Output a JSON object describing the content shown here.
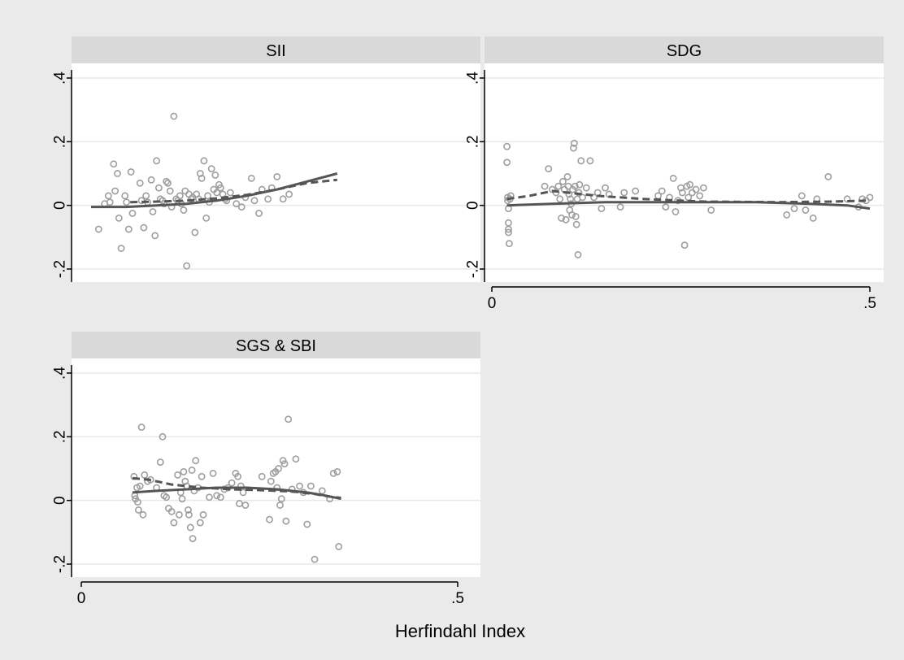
{
  "chart_data": {
    "type": "scatter",
    "layout": "small-multiples-2x2",
    "xlabel": "Herfindahl Index",
    "ylabel": "",
    "xlim": [
      0,
      0.5
    ],
    "ylim": [
      -0.2,
      0.4
    ],
    "x_ticks": [
      {
        "value": 0,
        "label": "0"
      },
      {
        "value": 0.5,
        "label": ".5"
      }
    ],
    "y_ticks": [
      {
        "value": -0.2,
        "label": "-.2"
      },
      {
        "value": 0,
        "label": "0"
      },
      {
        "value": 0.2,
        "label": ".2"
      },
      {
        "value": 0.4,
        "label": ".4"
      }
    ],
    "grid": "horizontal",
    "legend": "none",
    "colors": {
      "background": "#eaeaea",
      "plot_bg": "#ffffff",
      "header_bg": "#d9d9d9",
      "grid": "#e8e8e8",
      "axis": "#000000",
      "points": "#9e9e9e",
      "solid_line": "#555555",
      "dashed_line": "#555555"
    },
    "panels": [
      {
        "title": "SII",
        "points": [
          [
            0.075,
            -0.075
          ],
          [
            0.083,
            0.005
          ],
          [
            0.088,
            0.03
          ],
          [
            0.09,
            0.01
          ],
          [
            0.095,
            0.13
          ],
          [
            0.097,
            0.045
          ],
          [
            0.1,
            0.1
          ],
          [
            0.102,
            -0.04
          ],
          [
            0.105,
            -0.135
          ],
          [
            0.11,
            0.03
          ],
          [
            0.112,
            0.01
          ],
          [
            0.115,
            -0.075
          ],
          [
            0.118,
            0.105
          ],
          [
            0.12,
            -0.025
          ],
          [
            0.13,
            0.07
          ],
          [
            0.132,
            0.015
          ],
          [
            0.135,
            -0.07
          ],
          [
            0.138,
            0.03
          ],
          [
            0.14,
            0.01
          ],
          [
            0.145,
            0.08
          ],
          [
            0.147,
            -0.02
          ],
          [
            0.15,
            -0.095
          ],
          [
            0.152,
            0.14
          ],
          [
            0.155,
            0.055
          ],
          [
            0.157,
            0.02
          ],
          [
            0.16,
            0.015
          ],
          [
            0.162,
            0.005
          ],
          [
            0.165,
            0.075
          ],
          [
            0.167,
            0.07
          ],
          [
            0.17,
            0.045
          ],
          [
            0.172,
            -0.005
          ],
          [
            0.175,
            0.28
          ],
          [
            0.178,
            0.02
          ],
          [
            0.18,
            0.015
          ],
          [
            0.183,
            0.03
          ],
          [
            0.185,
            0.005
          ],
          [
            0.188,
            -0.015
          ],
          [
            0.19,
            0.045
          ],
          [
            0.192,
            -0.19
          ],
          [
            0.195,
            0.035
          ],
          [
            0.198,
            0.02
          ],
          [
            0.2,
            0.025
          ],
          [
            0.203,
            -0.085
          ],
          [
            0.205,
            0.035
          ],
          [
            0.208,
            0.02
          ],
          [
            0.21,
            0.1
          ],
          [
            0.212,
            0.085
          ],
          [
            0.215,
            0.14
          ],
          [
            0.218,
            -0.04
          ],
          [
            0.22,
            0.03
          ],
          [
            0.222,
            0.01
          ],
          [
            0.225,
            0.115
          ],
          [
            0.228,
            0.05
          ],
          [
            0.23,
            0.095
          ],
          [
            0.232,
            0.04
          ],
          [
            0.235,
            0.065
          ],
          [
            0.237,
            0.055
          ],
          [
            0.24,
            0.035
          ],
          [
            0.243,
            0.02
          ],
          [
            0.245,
            0.015
          ],
          [
            0.25,
            0.04
          ],
          [
            0.258,
            0.005
          ],
          [
            0.265,
            -0.005
          ],
          [
            0.27,
            0.025
          ],
          [
            0.278,
            0.085
          ],
          [
            0.282,
            0.015
          ],
          [
            0.288,
            -0.025
          ],
          [
            0.292,
            0.05
          ],
          [
            0.3,
            0.02
          ],
          [
            0.305,
            0.055
          ],
          [
            0.312,
            0.09
          ],
          [
            0.32,
            0.02
          ],
          [
            0.328,
            0.035
          ]
        ],
        "points_dx": -0.052,
        "solid_curve": [
          [
            0.013,
            -0.005
          ],
          [
            0.06,
            -0.005
          ],
          [
            0.1,
            0.0
          ],
          [
            0.14,
            0.005
          ],
          [
            0.18,
            0.015
          ],
          [
            0.22,
            0.03
          ],
          [
            0.26,
            0.05
          ],
          [
            0.3,
            0.075
          ],
          [
            0.34,
            0.1
          ]
        ],
        "solid_dx": 0.0,
        "dashed_curve": [
          [
            0.065,
            0.01
          ],
          [
            0.1,
            0.012
          ],
          [
            0.14,
            0.015
          ],
          [
            0.18,
            0.022
          ],
          [
            0.22,
            0.033
          ],
          [
            0.26,
            0.05
          ],
          [
            0.3,
            0.07
          ],
          [
            0.34,
            0.08
          ]
        ],
        "dashed_dx": -0.0
      },
      {
        "title": "SDG",
        "points": [
          [
            0.02,
            0.185
          ],
          [
            0.02,
            0.135
          ],
          [
            0.021,
            0.025
          ],
          [
            0.021,
            0.015
          ],
          [
            0.022,
            -0.01
          ],
          [
            0.022,
            -0.055
          ],
          [
            0.022,
            -0.075
          ],
          [
            0.022,
            -0.085
          ],
          [
            0.023,
            -0.12
          ],
          [
            0.024,
            0.02
          ],
          [
            0.025,
            0.03
          ],
          [
            0.07,
            0.06
          ],
          [
            0.075,
            0.115
          ],
          [
            0.08,
            0.05
          ],
          [
            0.085,
            0.04
          ],
          [
            0.088,
            0.06
          ],
          [
            0.09,
            0.02
          ],
          [
            0.092,
            -0.04
          ],
          [
            0.094,
            0.075
          ],
          [
            0.096,
            0.05
          ],
          [
            0.098,
            -0.045
          ],
          [
            0.1,
            0.09
          ],
          [
            0.101,
            0.06
          ],
          [
            0.102,
            0.035
          ],
          [
            0.103,
            -0.015
          ],
          [
            0.104,
            0.02
          ],
          [
            0.105,
            0.005
          ],
          [
            0.106,
            -0.03
          ],
          [
            0.107,
            0.05
          ],
          [
            0.108,
            0.18
          ],
          [
            0.109,
            0.195
          ],
          [
            0.11,
            0.06
          ],
          [
            0.111,
            -0.035
          ],
          [
            0.112,
            -0.06
          ],
          [
            0.113,
            0.02
          ],
          [
            0.114,
            -0.155
          ],
          [
            0.115,
            0.04
          ],
          [
            0.116,
            0.065
          ],
          [
            0.118,
            0.14
          ],
          [
            0.12,
            0.025
          ],
          [
            0.125,
            0.055
          ],
          [
            0.13,
            0.14
          ],
          [
            0.135,
            0.025
          ],
          [
            0.14,
            0.04
          ],
          [
            0.145,
            -0.01
          ],
          [
            0.15,
            0.055
          ],
          [
            0.155,
            0.035
          ],
          [
            0.17,
            -0.005
          ],
          [
            0.175,
            0.04
          ],
          [
            0.19,
            0.045
          ],
          [
            0.22,
            0.03
          ],
          [
            0.225,
            0.045
          ],
          [
            0.23,
            -0.005
          ],
          [
            0.235,
            0.025
          ],
          [
            0.24,
            0.085
          ],
          [
            0.243,
            -0.02
          ],
          [
            0.246,
            0.015
          ],
          [
            0.25,
            0.055
          ],
          [
            0.252,
            0.04
          ],
          [
            0.255,
            -0.125
          ],
          [
            0.258,
            0.06
          ],
          [
            0.26,
            0.025
          ],
          [
            0.262,
            0.065
          ],
          [
            0.265,
            0.04
          ],
          [
            0.27,
            0.05
          ],
          [
            0.275,
            0.03
          ],
          [
            0.28,
            0.055
          ],
          [
            0.29,
            -0.015
          ],
          [
            0.39,
            -0.03
          ],
          [
            0.4,
            -0.01
          ],
          [
            0.41,
            0.03
          ],
          [
            0.415,
            -0.015
          ],
          [
            0.425,
            -0.04
          ],
          [
            0.43,
            0.02
          ],
          [
            0.445,
            0.09
          ],
          [
            0.47,
            0.02
          ],
          [
            0.485,
            -0.005
          ],
          [
            0.49,
            0.02
          ],
          [
            0.495,
            0.015
          ],
          [
            0.5,
            0.025
          ]
        ],
        "points_dx": 0.0,
        "solid_curve": [
          [
            0.02,
            0.0
          ],
          [
            0.08,
            0.005
          ],
          [
            0.15,
            0.01
          ],
          [
            0.25,
            0.01
          ],
          [
            0.35,
            0.01
          ],
          [
            0.42,
            0.005
          ],
          [
            0.47,
            0.0
          ],
          [
            0.5,
            -0.01
          ]
        ],
        "solid_dx": 0.0,
        "dashed_curve": [
          [
            0.02,
            0.02
          ],
          [
            0.05,
            0.03
          ],
          [
            0.08,
            0.045
          ],
          [
            0.1,
            0.04
          ],
          [
            0.14,
            0.03
          ],
          [
            0.2,
            0.02
          ],
          [
            0.28,
            0.012
          ],
          [
            0.38,
            0.01
          ],
          [
            0.45,
            0.012
          ],
          [
            0.5,
            0.015
          ]
        ],
        "dashed_dx": 0.0
      },
      {
        "title": "SGS & SBI",
        "points": [
          [
            0.07,
            0.075
          ],
          [
            0.071,
            0.015
          ],
          [
            0.072,
            0.005
          ],
          [
            0.074,
            0.04
          ],
          [
            0.075,
            -0.005
          ],
          [
            0.076,
            -0.03
          ],
          [
            0.078,
            0.045
          ],
          [
            0.08,
            0.23
          ],
          [
            0.082,
            -0.045
          ],
          [
            0.084,
            0.08
          ],
          [
            0.088,
            0.06
          ],
          [
            0.092,
            0.065
          ],
          [
            0.1,
            0.04
          ],
          [
            0.105,
            0.12
          ],
          [
            0.108,
            0.2
          ],
          [
            0.11,
            0.015
          ],
          [
            0.113,
            0.01
          ],
          [
            0.116,
            -0.025
          ],
          [
            0.12,
            -0.035
          ],
          [
            0.123,
            -0.07
          ],
          [
            0.128,
            0.08
          ],
          [
            0.13,
            -0.045
          ],
          [
            0.132,
            0.025
          ],
          [
            0.134,
            0.005
          ],
          [
            0.136,
            0.09
          ],
          [
            0.138,
            0.06
          ],
          [
            0.14,
            0.045
          ],
          [
            0.142,
            -0.03
          ],
          [
            0.143,
            -0.045
          ],
          [
            0.145,
            -0.085
          ],
          [
            0.147,
            0.095
          ],
          [
            0.148,
            -0.12
          ],
          [
            0.15,
            0.03
          ],
          [
            0.152,
            0.125
          ],
          [
            0.155,
            0.04
          ],
          [
            0.158,
            -0.07
          ],
          [
            0.16,
            0.075
          ],
          [
            0.162,
            -0.045
          ],
          [
            0.17,
            0.01
          ],
          [
            0.175,
            0.085
          ],
          [
            0.18,
            0.015
          ],
          [
            0.185,
            0.01
          ],
          [
            0.19,
            0.035
          ],
          [
            0.195,
            0.04
          ],
          [
            0.2,
            0.055
          ],
          [
            0.205,
            0.085
          ],
          [
            0.208,
            0.075
          ],
          [
            0.21,
            -0.01
          ],
          [
            0.212,
            0.045
          ],
          [
            0.215,
            0.025
          ],
          [
            0.218,
            -0.015
          ],
          [
            0.24,
            0.075
          ],
          [
            0.25,
            -0.06
          ],
          [
            0.252,
            0.06
          ],
          [
            0.255,
            0.085
          ],
          [
            0.258,
            0.09
          ],
          [
            0.26,
            0.04
          ],
          [
            0.262,
            0.1
          ],
          [
            0.264,
            -0.015
          ],
          [
            0.266,
            0.005
          ],
          [
            0.268,
            0.125
          ],
          [
            0.27,
            0.115
          ],
          [
            0.272,
            -0.065
          ],
          [
            0.275,
            0.255
          ],
          [
            0.28,
            0.035
          ],
          [
            0.285,
            0.13
          ],
          [
            0.29,
            0.045
          ],
          [
            0.295,
            0.025
          ],
          [
            0.3,
            -0.075
          ],
          [
            0.305,
            0.045
          ],
          [
            0.31,
            -0.185
          ],
          [
            0.32,
            0.03
          ],
          [
            0.33,
            0.005
          ],
          [
            0.335,
            0.085
          ],
          [
            0.34,
            0.09
          ],
          [
            0.342,
            -0.145
          ]
        ],
        "points_dx": 0.0,
        "solid_curve": [
          [
            0.068,
            0.025
          ],
          [
            0.1,
            0.03
          ],
          [
            0.14,
            0.035
          ],
          [
            0.18,
            0.04
          ],
          [
            0.22,
            0.04
          ],
          [
            0.26,
            0.035
          ],
          [
            0.3,
            0.025
          ],
          [
            0.325,
            0.015
          ],
          [
            0.345,
            0.005
          ]
        ],
        "solid_dx": 0.0,
        "dashed_curve": [
          [
            0.068,
            0.07
          ],
          [
            0.09,
            0.065
          ],
          [
            0.12,
            0.05
          ],
          [
            0.16,
            0.04
          ],
          [
            0.2,
            0.035
          ],
          [
            0.24,
            0.032
          ],
          [
            0.28,
            0.028
          ],
          [
            0.31,
            0.02
          ],
          [
            0.33,
            0.012
          ],
          [
            0.345,
            0.008
          ]
        ],
        "dashed_dx": 0.0
      }
    ]
  }
}
